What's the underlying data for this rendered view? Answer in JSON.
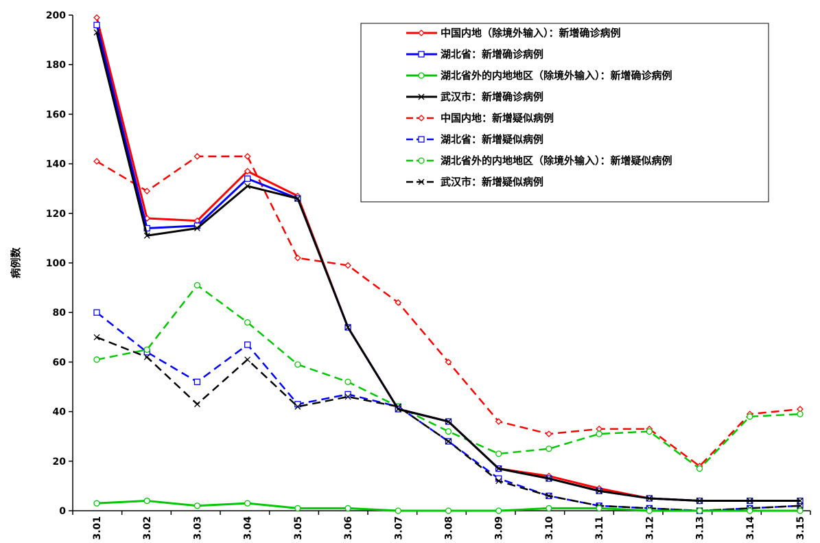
{
  "chart_data": {
    "type": "line",
    "title": "",
    "xlabel": "",
    "ylabel": "病例数",
    "ylim": [
      0,
      200
    ],
    "yticks": [
      0,
      20,
      40,
      60,
      80,
      100,
      120,
      140,
      160,
      180,
      200
    ],
    "categories": [
      "3.01",
      "3.02",
      "3.03",
      "3.04",
      "3.05",
      "3.06",
      "3.07",
      "3.08",
      "3.09",
      "3.10",
      "3.11",
      "3.12",
      "3.13",
      "3.14",
      "3.15"
    ],
    "legend_position": "top-right",
    "grid": false,
    "series": [
      {
        "name": "中国内地（除境外输入）：新增确诊病例",
        "color": "#ff0000",
        "dash": "solid",
        "marker": "diamond",
        "values": [
          199,
          118,
          117,
          137,
          127,
          74,
          41,
          36,
          17,
          14,
          9,
          5,
          4,
          4,
          4
        ]
      },
      {
        "name": "湖北省：新增确诊病例",
        "color": "#0000ff",
        "dash": "solid",
        "marker": "square",
        "values": [
          196,
          114,
          115,
          134,
          126,
          74,
          41,
          36,
          17,
          13,
          8,
          5,
          4,
          4,
          4
        ]
      },
      {
        "name": "湖北省外的内地地区（除境外输入）：新增确诊病例",
        "color": "#00c800",
        "dash": "solid",
        "marker": "circle",
        "values": [
          3,
          4,
          2,
          3,
          1,
          1,
          0,
          0,
          0,
          1,
          1,
          0,
          0,
          0,
          0
        ]
      },
      {
        "name": "武汉市：新增确诊病例",
        "color": "#000000",
        "dash": "solid",
        "marker": "x",
        "values": [
          193,
          111,
          114,
          131,
          126,
          74,
          41,
          36,
          17,
          13,
          8,
          5,
          4,
          4,
          4
        ]
      },
      {
        "name": "中国内地：新增疑似病例",
        "color": "#ff0000",
        "dash": "dashed",
        "marker": "diamond",
        "values": [
          141,
          129,
          143,
          143,
          102,
          99,
          84,
          60,
          36,
          31,
          33,
          33,
          18,
          39,
          41
        ]
      },
      {
        "name": "湖北省：新增疑似病例",
        "color": "#0000ff",
        "dash": "dashed",
        "marker": "square",
        "values": [
          80,
          64,
          52,
          67,
          43,
          47,
          42,
          28,
          13,
          6,
          2,
          1,
          0,
          1,
          2
        ]
      },
      {
        "name": "湖北省外的内地地区（除境外输入）：新增疑似病例",
        "color": "#00c800",
        "dash": "dashed",
        "marker": "circle",
        "values": [
          61,
          65,
          91,
          76,
          59,
          52,
          42,
          32,
          23,
          25,
          31,
          32,
          17,
          38,
          39
        ]
      },
      {
        "name": "武汉市：新增疑似病例",
        "color": "#000000",
        "dash": "dashed",
        "marker": "x",
        "values": [
          70,
          62,
          43,
          61,
          42,
          46,
          42,
          28,
          12,
          6,
          2,
          1,
          0,
          1,
          2
        ]
      }
    ]
  }
}
